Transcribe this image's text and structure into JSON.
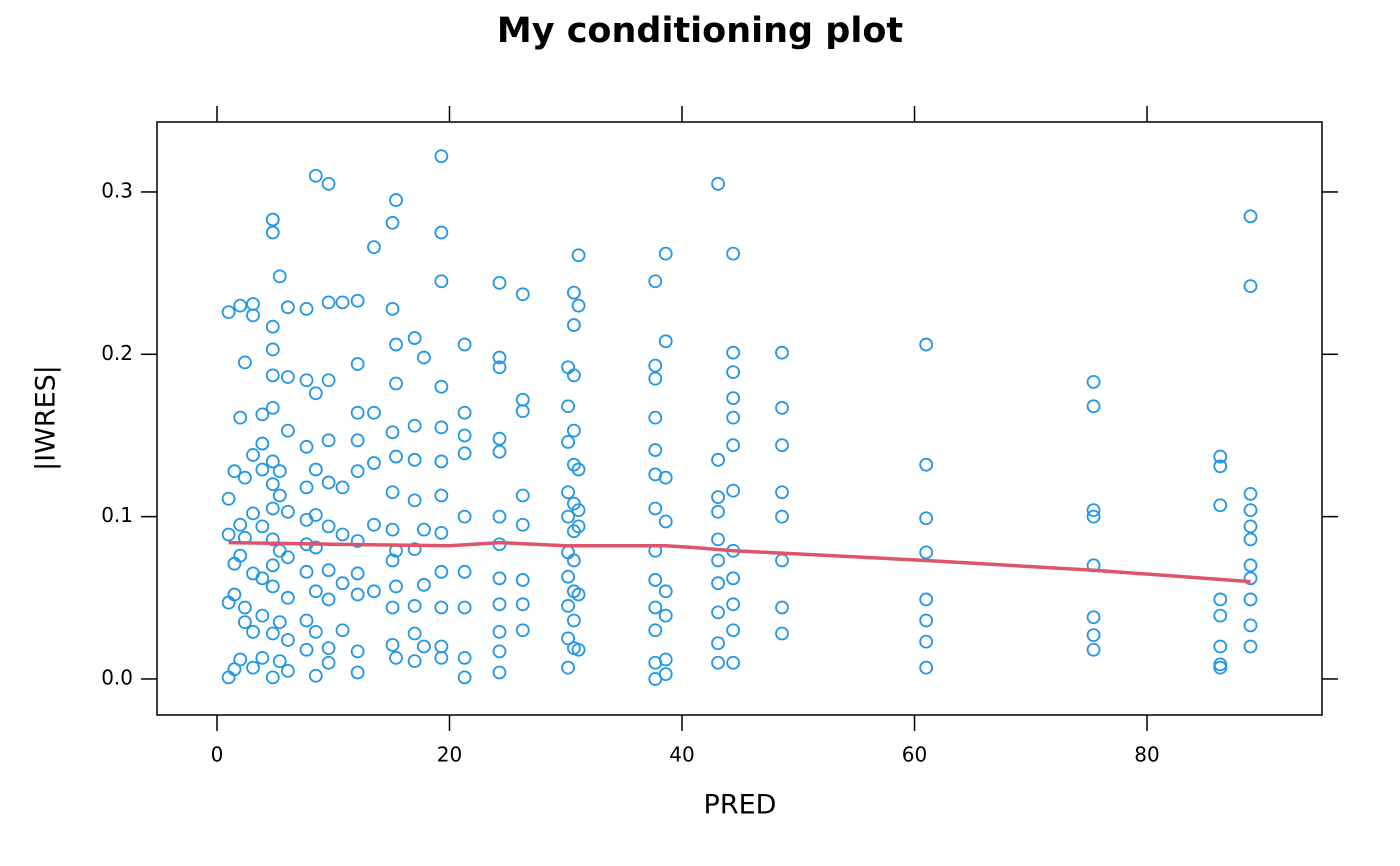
{
  "chart_data": {
    "type": "scatter",
    "title": "My conditioning plot",
    "x_label": "PRED",
    "y_label": "|IWRES|",
    "color": "#2297e6",
    "xlim": [
      -5.16,
      95.05
    ],
    "ylim": [
      -0.0222,
      0.3431
    ],
    "xticks": [
      0,
      20,
      40,
      60,
      80
    ],
    "yticks": [
      {
        "value": 0,
        "label": "0.0"
      },
      0.1,
      0.2,
      0.3
    ],
    "x": [
      1.0,
      1.0,
      1.0,
      1.0,
      1.0,
      1.5,
      1.5,
      1.5,
      1.5,
      2.0,
      2.0,
      2.0,
      2.0,
      2.0,
      2.4,
      2.4,
      2.4,
      2.4,
      2.4,
      3.1,
      3.1,
      3.1,
      3.1,
      3.1,
      3.1,
      3.1,
      3.9,
      3.9,
      3.9,
      3.9,
      3.9,
      3.9,
      3.9,
      4.8,
      4.8,
      4.8,
      4.8,
      4.8,
      4.8,
      4.8,
      4.8,
      4.8,
      4.8,
      4.8,
      4.8,
      4.8,
      4.8,
      5.4,
      5.4,
      5.4,
      5.4,
      5.4,
      5.4,
      6.1,
      6.1,
      6.1,
      6.1,
      6.1,
      6.1,
      6.1,
      6.1,
      7.7,
      7.7,
      7.7,
      7.7,
      7.7,
      7.7,
      7.7,
      7.7,
      7.7,
      8.5,
      8.5,
      8.5,
      8.5,
      8.5,
      8.5,
      8.5,
      8.5,
      9.6,
      9.6,
      9.6,
      9.6,
      9.6,
      9.6,
      9.6,
      9.6,
      9.6,
      9.6,
      10.8,
      10.8,
      10.8,
      10.8,
      10.8,
      12.1,
      12.1,
      12.1,
      12.1,
      12.1,
      12.1,
      12.1,
      12.1,
      12.1,
      12.1,
      13.5,
      13.5,
      13.5,
      13.5,
      13.5,
      15.1,
      15.1,
      15.1,
      15.1,
      15.1,
      15.1,
      15.1,
      15.1,
      15.4,
      15.4,
      15.4,
      15.4,
      15.4,
      15.4,
      15.4,
      17.0,
      17.0,
      17.0,
      17.0,
      17.0,
      17.0,
      17.0,
      17.0,
      17.8,
      17.8,
      17.8,
      17.8,
      19.3,
      19.3,
      19.3,
      19.3,
      19.3,
      19.3,
      19.3,
      19.3,
      19.3,
      19.3,
      19.3,
      19.3,
      21.3,
      21.3,
      21.3,
      21.3,
      21.3,
      21.3,
      21.3,
      21.3,
      21.3,
      24.3,
      24.3,
      24.3,
      24.3,
      24.3,
      24.3,
      24.3,
      24.3,
      24.3,
      24.3,
      24.3,
      24.3,
      26.3,
      26.3,
      26.3,
      26.3,
      26.3,
      26.3,
      26.3,
      26.3,
      30.2,
      30.2,
      30.2,
      30.2,
      30.2,
      30.2,
      30.2,
      30.2,
      30.2,
      30.2,
      30.7,
      30.7,
      30.7,
      30.7,
      30.7,
      30.7,
      30.7,
      30.7,
      30.7,
      30.7,
      30.7,
      31.1,
      31.1,
      31.1,
      31.1,
      31.1,
      31.1,
      31.1,
      37.7,
      37.7,
      37.7,
      37.7,
      37.7,
      37.7,
      37.7,
      37.7,
      37.7,
      37.7,
      37.7,
      37.7,
      37.7,
      38.6,
      38.6,
      38.6,
      38.6,
      38.6,
      38.6,
      38.6,
      38.6,
      43.1,
      43.1,
      43.1,
      43.1,
      43.1,
      43.1,
      43.1,
      43.1,
      43.1,
      43.1,
      44.4,
      44.4,
      44.4,
      44.4,
      44.4,
      44.4,
      44.4,
      44.4,
      44.4,
      44.4,
      44.4,
      44.4,
      48.6,
      48.6,
      48.6,
      48.6,
      48.6,
      48.6,
      48.6,
      48.6,
      61.0,
      61.0,
      61.0,
      61.0,
      61.0,
      61.0,
      61.0,
      61.0,
      75.4,
      75.4,
      75.4,
      75.4,
      75.4,
      75.4,
      75.4,
      75.4,
      86.3,
      86.3,
      86.3,
      86.3,
      86.3,
      86.3,
      86.3,
      86.3,
      88.9,
      88.9,
      88.9,
      88.9,
      88.9,
      88.9,
      88.9,
      88.9,
      88.9,
      88.9,
      88.9
    ],
    "y": [
      0.226,
      0.111,
      0.089,
      0.047,
      0.001,
      0.128,
      0.071,
      0.052,
      0.006,
      0.23,
      0.161,
      0.095,
      0.076,
      0.012,
      0.195,
      0.124,
      0.087,
      0.044,
      0.035,
      0.231,
      0.224,
      0.138,
      0.102,
      0.065,
      0.029,
      0.007,
      0.163,
      0.145,
      0.129,
      0.094,
      0.062,
      0.039,
      0.013,
      0.283,
      0.275,
      0.217,
      0.203,
      0.187,
      0.167,
      0.134,
      0.12,
      0.105,
      0.086,
      0.07,
      0.057,
      0.028,
      0.001,
      0.248,
      0.128,
      0.113,
      0.079,
      0.035,
      0.011,
      0.229,
      0.186,
      0.153,
      0.103,
      0.075,
      0.05,
      0.024,
      0.005,
      0.228,
      0.184,
      0.143,
      0.118,
      0.098,
      0.083,
      0.066,
      0.036,
      0.018,
      0.31,
      0.176,
      0.129,
      0.101,
      0.081,
      0.054,
      0.029,
      0.002,
      0.305,
      0.232,
      0.184,
      0.147,
      0.121,
      0.094,
      0.067,
      0.049,
      0.019,
      0.01,
      0.232,
      0.118,
      0.089,
      0.059,
      0.03,
      0.233,
      0.194,
      0.164,
      0.147,
      0.128,
      0.085,
      0.065,
      0.052,
      0.017,
      0.004,
      0.266,
      0.164,
      0.133,
      0.095,
      0.054,
      0.281,
      0.228,
      0.152,
      0.115,
      0.092,
      0.073,
      0.044,
      0.021,
      0.295,
      0.206,
      0.182,
      0.137,
      0.079,
      0.057,
      0.013,
      0.21,
      0.156,
      0.135,
      0.11,
      0.08,
      0.045,
      0.028,
      0.011,
      0.198,
      0.092,
      0.058,
      0.02,
      0.322,
      0.275,
      0.245,
      0.18,
      0.155,
      0.134,
      0.113,
      0.09,
      0.066,
      0.044,
      0.02,
      0.013,
      0.206,
      0.164,
      0.15,
      0.139,
      0.1,
      0.066,
      0.044,
      0.013,
      0.001,
      0.244,
      0.198,
      0.192,
      0.148,
      0.14,
      0.1,
      0.083,
      0.062,
      0.046,
      0.029,
      0.017,
      0.004,
      0.237,
      0.172,
      0.165,
      0.113,
      0.095,
      0.061,
      0.046,
      0.03,
      0.192,
      0.168,
      0.146,
      0.115,
      0.1,
      0.078,
      0.063,
      0.045,
      0.025,
      0.007,
      0.238,
      0.218,
      0.187,
      0.153,
      0.132,
      0.108,
      0.091,
      0.073,
      0.054,
      0.036,
      0.019,
      0.261,
      0.23,
      0.129,
      0.104,
      0.094,
      0.052,
      0.018,
      0.245,
      0.193,
      0.185,
      0.161,
      0.141,
      0.126,
      0.105,
      0.079,
      0.061,
      0.044,
      0.03,
      0.01,
      0.0,
      0.262,
      0.208,
      0.124,
      0.097,
      0.054,
      0.039,
      0.012,
      0.003,
      0.305,
      0.135,
      0.112,
      0.103,
      0.086,
      0.073,
      0.059,
      0.041,
      0.022,
      0.01,
      0.262,
      0.201,
      0.189,
      0.173,
      0.161,
      0.144,
      0.116,
      0.079,
      0.062,
      0.046,
      0.03,
      0.01,
      0.201,
      0.167,
      0.144,
      0.115,
      0.1,
      0.073,
      0.044,
      0.028,
      0.206,
      0.132,
      0.099,
      0.078,
      0.049,
      0.036,
      0.023,
      0.007,
      0.183,
      0.168,
      0.104,
      0.1,
      0.07,
      0.038,
      0.027,
      0.018,
      0.137,
      0.131,
      0.107,
      0.049,
      0.039,
      0.02,
      0.009,
      0.007,
      0.285,
      0.242,
      0.114,
      0.104,
      0.094,
      0.086,
      0.07,
      0.062,
      0.049,
      0.033,
      0.02
    ],
    "smooth": {
      "color": "#df536b",
      "x": [
        1.0,
        10.0,
        20.0,
        24.3,
        30.0,
        38.6,
        41.0,
        44.4,
        61.0,
        75.4,
        88.9
      ],
      "y": [
        0.084,
        0.083,
        0.082,
        0.084,
        0.082,
        0.082,
        0.081,
        0.079,
        0.073,
        0.067,
        0.06
      ]
    }
  }
}
